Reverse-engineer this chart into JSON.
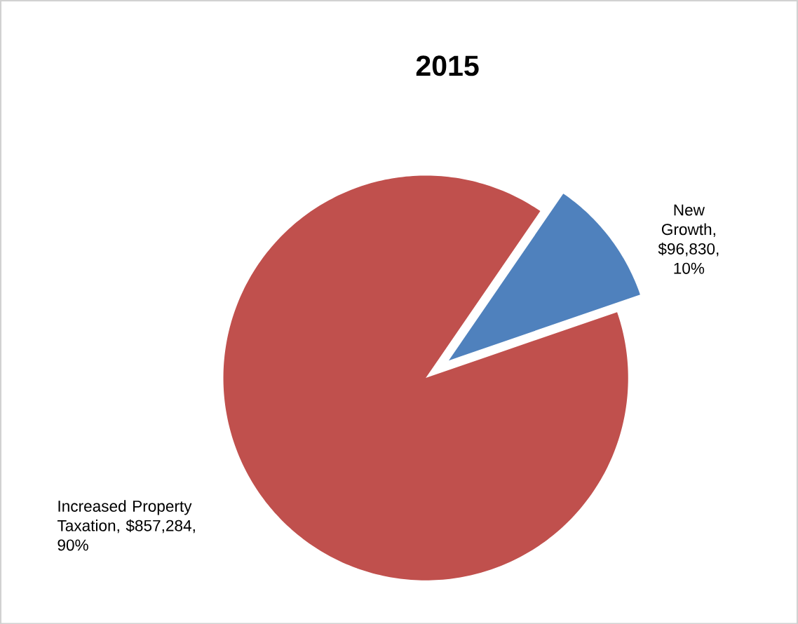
{
  "chart_data": {
    "type": "pie",
    "title": "2015",
    "categories": [
      "New Growth",
      "Increased Property Taxation"
    ],
    "values": [
      96830,
      857284
    ],
    "value_labels": [
      ", $96,830, 10%",
      ", $857,284, 90%"
    ],
    "colors": [
      "#4f81bd",
      "#c0504d"
    ]
  }
}
